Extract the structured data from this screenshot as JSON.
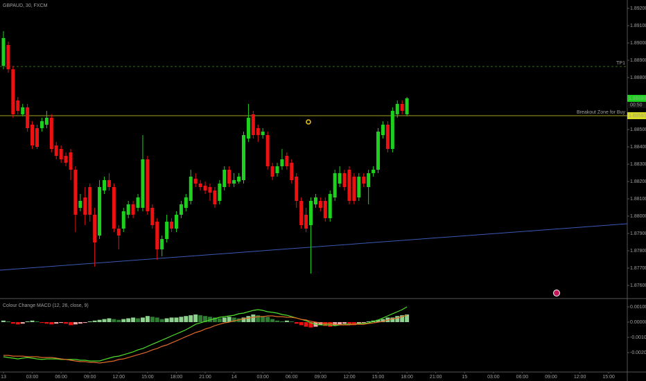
{
  "chart_data": [
    {
      "type": "candlestick",
      "title": "GBPAUD, 30, FXCM",
      "up_color": "#1fd11f",
      "down_color": "#ee1111",
      "open": [
        1.88868,
        1.88988,
        1.88848,
        1.88668,
        1.88588,
        1.88628,
        1.88528,
        1.88508,
        1.88508,
        1.88528,
        1.88568,
        1.88408,
        1.88388,
        1.88348,
        1.88368,
        1.88268,
        1.88048,
        1.88108,
        1.88168,
        1.88008,
        1.87888,
        1.88148,
        1.88208,
        1.88168,
        1.87928,
        1.87928,
        1.88008,
        1.88068,
        1.88048,
        1.88048,
        1.88328,
        1.88048,
        1.87968,
        1.87808,
        1.87868,
        1.87968,
        1.87928,
        1.88008,
        1.88048,
        1.88088,
        1.88216,
        1.88188,
        1.88176,
        1.88168,
        1.88148,
        1.88088,
        1.88168,
        1.88268,
        1.88188,
        1.882,
        1.88208,
        1.88448,
        1.88588,
        1.88508,
        1.88468,
        1.88468,
        1.88288,
        1.88248,
        1.88288,
        1.88348,
        1.88308,
        1.88228,
        1.88088,
        1.88008,
        1.87948,
        1.88068,
        1.88088,
        1.88088,
        1.87988,
        1.88108,
        1.88188,
        1.88248,
        1.88268,
        1.88228,
        1.88108,
        1.88228,
        1.88168,
        1.88248,
        1.88268,
        1.88468,
        1.88528,
        1.88388,
        1.88588,
        1.88648,
        1.88588
      ],
      "high": [
        1.89068,
        1.89008,
        1.88868,
        1.88688,
        1.88648,
        1.88648,
        1.88548,
        1.88528,
        1.88568,
        1.88608,
        1.88588,
        1.88428,
        1.88408,
        1.88368,
        1.88388,
        1.88288,
        1.88128,
        1.88168,
        1.88188,
        1.88048,
        1.88208,
        1.88228,
        1.88248,
        1.88188,
        1.87948,
        1.88048,
        1.88088,
        1.88088,
        1.88128,
        1.88468,
        1.88348,
        1.88068,
        1.87988,
        1.87888,
        1.88008,
        1.87988,
        1.88028,
        1.88088,
        1.88128,
        1.88268,
        1.88248,
        1.88208,
        1.882,
        1.88188,
        1.88168,
        1.88208,
        1.88288,
        1.88288,
        1.88248,
        1.88248,
        1.88488,
        1.88648,
        1.88608,
        1.88528,
        1.88508,
        1.88488,
        1.88308,
        1.88308,
        1.88388,
        1.88368,
        1.88328,
        1.88248,
        1.88108,
        1.88048,
        1.88108,
        1.88128,
        1.88108,
        1.88108,
        1.88148,
        1.88268,
        1.88288,
        1.88268,
        1.88288,
        1.88248,
        1.88248,
        1.88248,
        1.88268,
        1.88288,
        1.88508,
        1.88548,
        1.88548,
        1.88628,
        1.88668,
        1.88668,
        1.88688
      ],
      "low": [
        1.88848,
        1.88828,
        1.88568,
        1.88588,
        1.88576,
        1.88488,
        1.88388,
        1.88388,
        1.88488,
        1.88508,
        1.88368,
        1.88328,
        1.88308,
        1.88288,
        1.88208,
        1.87908,
        1.88028,
        1.87948,
        1.87968,
        1.87708,
        1.87868,
        1.88128,
        1.88148,
        1.87908,
        1.87808,
        1.87908,
        1.87988,
        1.87988,
        1.88028,
        1.88028,
        1.88008,
        1.87928,
        1.87748,
        1.87768,
        1.87848,
        1.87908,
        1.87908,
        1.87988,
        1.88028,
        1.88068,
        1.88168,
        1.88148,
        1.88128,
        1.88088,
        1.88048,
        1.88068,
        1.88148,
        1.88168,
        1.88168,
        1.88188,
        1.88188,
        1.88428,
        1.88448,
        1.88428,
        1.88448,
        1.88268,
        1.88208,
        1.88228,
        1.88268,
        1.88268,
        1.88188,
        1.88048,
        1.87928,
        1.87908,
        1.87668,
        1.88048,
        1.88028,
        1.87968,
        1.87968,
        1.88088,
        1.88168,
        1.88148,
        1.88068,
        1.88068,
        1.88088,
        1.88168,
        1.88068,
        1.88228,
        1.88248,
        1.88448,
        1.88368,
        1.88368,
        1.88568,
        1.88588,
        1.88576
      ],
      "close": [
        1.89028,
        1.88848,
        1.88588,
        1.88608,
        1.88628,
        1.88508,
        1.88408,
        1.884,
        1.88548,
        1.88568,
        1.88388,
        1.88348,
        1.88328,
        1.88308,
        1.88268,
        1.88008,
        1.88088,
        1.88008,
        1.88008,
        1.87848,
        1.88168,
        1.88208,
        1.88168,
        1.87928,
        1.87888,
        1.88028,
        1.88068,
        1.88008,
        1.88108,
        1.88328,
        1.88028,
        1.87948,
        1.87808,
        1.87868,
        1.87968,
        1.87928,
        1.88008,
        1.88068,
        1.88108,
        1.88228,
        1.88188,
        1.88168,
        1.88148,
        1.88136,
        1.88068,
        1.88188,
        1.88268,
        1.88188,
        1.88208,
        1.88228,
        1.88468,
        1.88568,
        1.88468,
        1.88468,
        1.88488,
        1.88288,
        1.88228,
        1.88288,
        1.88328,
        1.88288,
        1.88208,
        1.88088,
        1.87948,
        1.87928,
        1.88088,
        1.88108,
        1.88048,
        1.87988,
        1.88128,
        1.88248,
        1.88248,
        1.88168,
        1.88088,
        1.88088,
        1.88228,
        1.88188,
        1.88248,
        1.88268,
        1.88488,
        1.88528,
        1.88388,
        1.88608,
        1.88648,
        1.88608,
        1.8868
      ],
      "xlim": [
        -0.72,
        129.87
      ],
      "ylim": [
        1.87528,
        1.89248
      ],
      "yticks": [
        {
          "value": 1.892,
          "label": "1.89200"
        },
        {
          "value": 1.891,
          "label": "1.89100"
        },
        {
          "value": 1.89,
          "label": "1.89000"
        },
        {
          "value": 1.889,
          "label": "1.88900"
        },
        {
          "value": 1.888,
          "label": "1.88800"
        },
        {
          "value": 1.885,
          "label": "1.88500"
        },
        {
          "value": 1.884,
          "label": "1.88400"
        },
        {
          "value": 1.883,
          "label": "1.88300"
        },
        {
          "value": 1.882,
          "label": "1.88200"
        },
        {
          "value": 1.881,
          "label": "1.88100"
        },
        {
          "value": 1.88,
          "label": "1.88000"
        },
        {
          "value": 1.879,
          "label": "1.87900"
        },
        {
          "value": 1.878,
          "label": "1.87800"
        },
        {
          "value": 1.877,
          "label": "1.87700"
        },
        {
          "value": 1.876,
          "label": "1.87600"
        }
      ],
      "xticks": [
        {
          "value": 0,
          "label": "13"
        },
        {
          "value": 6,
          "label": "03:00"
        },
        {
          "value": 12,
          "label": "06:00"
        },
        {
          "value": 18,
          "label": "09:00"
        },
        {
          "value": 24,
          "label": "12:00"
        },
        {
          "value": 30,
          "label": "15:00"
        },
        {
          "value": 36,
          "label": "18:00"
        },
        {
          "value": 42,
          "label": "21:00"
        },
        {
          "value": 48,
          "label": "14"
        },
        {
          "value": 54,
          "label": "03:00"
        },
        {
          "value": 60,
          "label": "06:00"
        },
        {
          "value": 66,
          "label": "09:00"
        },
        {
          "value": 72,
          "label": "12:00"
        },
        {
          "value": 78,
          "label": "15:00"
        },
        {
          "value": 84,
          "label": "18:00"
        },
        {
          "value": 90,
          "label": "21:00"
        },
        {
          "value": 96,
          "label": "15"
        },
        {
          "value": 102,
          "label": "03:00"
        },
        {
          "value": 108,
          "label": "06:00"
        },
        {
          "value": 114,
          "label": "09:00"
        },
        {
          "value": 120,
          "label": "12:00"
        },
        {
          "value": 126,
          "label": "15:00"
        }
      ],
      "lines": [
        {
          "label": "TP1",
          "value": 1.88864,
          "color": "#4f8a2f",
          "dashed": true
        },
        {
          "label": "Breakout Zone for Buy",
          "value": 1.8858,
          "color": "#d9d92a",
          "dashed": false
        }
      ],
      "trendline": {
        "x": [
          -0.72,
          129.87
        ],
        "y": [
          1.87688,
          1.87956
        ],
        "color": "#3a5bb8"
      },
      "price_labels": [
        {
          "value": 1.8868,
          "label": "1.88680",
          "color": "#1fd11f"
        },
        {
          "value": 1.8858,
          "label": "1.88580",
          "color": "#d9d92a"
        }
      ],
      "countdown": "00:50"
    },
    {
      "type": "macd",
      "title": "Colour Change MACD (12, 26, close, 9)",
      "ylim": [
        -0.00318,
        0.0015
      ],
      "yticks": [
        {
          "value": 0.001,
          "label": "0.00100"
        },
        {
          "value": 0,
          "label": "0.00000"
        },
        {
          "value": -0.001,
          "label": "-0.00100"
        },
        {
          "value": -0.002,
          "label": "-0.00200"
        }
      ],
      "histogram": [
        0.0001,
        5e-05,
        -0.0001,
        -0.00015,
        -0.0001,
        5e-05,
        0.0001,
        5e-05,
        -5e-05,
        -0.0001,
        -0.00015,
        -0.0001,
        -5e-05,
        -0.0001,
        -0.0002,
        -0.00015,
        -0.0001,
        -5e-05,
        5e-05,
        0.0001,
        0.00015,
        0.0002,
        0.00025,
        0.0002,
        0.00015,
        0.0002,
        0.00025,
        0.0003,
        0.00025,
        0.0003,
        0.0004,
        0.00035,
        0.0003,
        0.0002,
        0.00025,
        0.0003,
        0.0003,
        0.00035,
        0.0004,
        0.00045,
        0.0005,
        0.00045,
        0.0004,
        0.00035,
        0.0003,
        0.00025,
        0.0003,
        0.00035,
        0.0003,
        0.00025,
        0.0003,
        0.0004,
        0.0005,
        0.00045,
        0.0004,
        0.00035,
        0.0002,
        0.0001,
        5e-05,
        0.0001,
        5e-05,
        -0.0001,
        -0.0002,
        -0.0003,
        -0.00035,
        -0.0003,
        -0.0002,
        -0.00025,
        -0.0003,
        -0.0002,
        -0.00015,
        -0.0001,
        -0.00015,
        -0.0002,
        -0.0001,
        -5e-05,
        5e-05,
        0.0001,
        0.00015,
        0.0002,
        0.0003,
        0.0003,
        0.0004,
        0.00045,
        0.0005
      ],
      "histogram_colors": {
        "up_rising": "#8fd18f",
        "up_falling": "#2e7d32",
        "down_falling": "#ee1111",
        "down_rising": "#f4a6a6"
      },
      "series": [
        {
          "color": "#4fe02a",
          "values": [
            -0.00227,
            -0.00232,
            -0.00236,
            -0.00241,
            -0.00236,
            -0.00232,
            -0.00236,
            -0.00241,
            -0.00245,
            -0.00241,
            -0.00241,
            -0.00241,
            -0.00245,
            -0.00245,
            -0.00245,
            -0.00245,
            -0.0025,
            -0.0025,
            -0.00255,
            -0.00255,
            -0.00255,
            -0.00245,
            -0.00236,
            -0.00227,
            -0.00223,
            -0.00214,
            -0.00205,
            -0.00195,
            -0.00182,
            -0.00173,
            -0.00159,
            -0.00145,
            -0.00132,
            -0.00118,
            -0.00105,
            -0.00091,
            -0.00077,
            -0.00064,
            -0.0005,
            -0.00032,
            -0.00014,
            -5e-05,
            5e-05,
            0.00014,
            0.00023,
            0.00032,
            0.00036,
            0.00041,
            0.00045,
            0.00055,
            0.00059,
            0.00068,
            0.00077,
            0.00082,
            0.00077,
            0.00068,
            0.00064,
            0.00059,
            0.0005,
            0.00045,
            0.00036,
            0.00027,
            0.00018,
            9e-05,
            -5e-05,
            -0.00014,
            -0.00018,
            -0.00018,
            -0.00018,
            -0.00023,
            -0.00018,
            -0.00014,
            -0.00014,
            -0.00014,
            -9e-05,
            -9e-05,
            -5e-05,
            5e-05,
            0.00014,
            0.00027,
            0.00041,
            0.00055,
            0.00068,
            0.00082,
            0.001
          ]
        },
        {
          "color": "#e06a28",
          "values": [
            -0.00218,
            -0.00218,
            -0.00223,
            -0.00223,
            -0.00223,
            -0.00227,
            -0.00227,
            -0.00227,
            -0.00232,
            -0.00232,
            -0.00232,
            -0.00236,
            -0.00241,
            -0.00245,
            -0.0025,
            -0.00255,
            -0.00259,
            -0.00259,
            -0.00264,
            -0.00264,
            -0.00268,
            -0.00264,
            -0.00259,
            -0.00255,
            -0.00245,
            -0.00241,
            -0.00232,
            -0.00223,
            -0.00214,
            -0.00205,
            -0.00195,
            -0.00182,
            -0.00173,
            -0.00159,
            -0.0015,
            -0.00136,
            -0.00123,
            -0.00109,
            -0.00095,
            -0.00082,
            -0.00068,
            -0.00059,
            -0.00045,
            -0.00036,
            -0.00023,
            -0.00014,
            -5e-05,
            0,
            9e-05,
            0.00014,
            0.00023,
            0.00027,
            0.00032,
            0.00036,
            0.00036,
            0.00041,
            0.00041,
            0.00036,
            0.00036,
            0.00032,
            0.00032,
            0.00027,
            0.00018,
            0.00014,
            5e-05,
            0,
            -5e-05,
            -9e-05,
            -9e-05,
            -0.00014,
            -0.00018,
            -0.00018,
            -0.00018,
            -0.00014,
            -0.00014,
            -0.00014,
            -9e-05,
            -5e-05,
            0,
            5e-05,
            0.00014,
            0.00023,
            0.00027,
            0.00036,
            0.00045
          ]
        }
      ]
    }
  ]
}
